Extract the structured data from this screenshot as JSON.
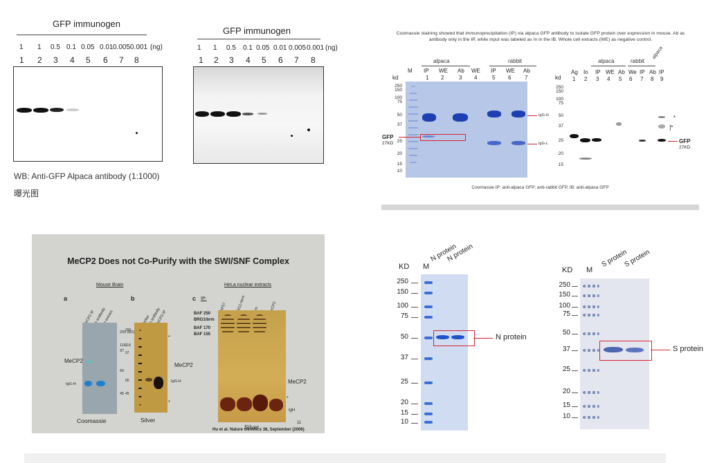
{
  "panel1": {
    "left": {
      "title": "GFP  immunogen",
      "amounts": [
        "1",
        "1",
        "0.5",
        "0.1",
        "0.05",
        "0.01",
        "0.005",
        "0.001",
        "(ng)"
      ],
      "lanes": [
        "1",
        "2",
        "3",
        "4",
        "5",
        "6",
        "7",
        "8"
      ]
    },
    "right": {
      "title": "GFP  immunogen",
      "amounts": [
        "1",
        "1",
        "0.5",
        "0.1",
        "0.05",
        "0.01",
        "0.005",
        "0.001",
        "(ng)"
      ],
      "lanes": [
        "1",
        "2",
        "3",
        "4",
        "5",
        "6",
        "7",
        "8"
      ]
    },
    "caption": "WB: Anti-GFP Alpaca antibody (1:1000)",
    "subcaption": "曝光图"
  },
  "panel2": {
    "description": "Coomassie staining showed that immunoprecipitation (IP) via alpaca GFP antibody to isolate GFP protein over expression in mouse. Ab as antibody only in the IP, while input was labeled as In in the IB. Whole cell extracts (WE)  as negative control.",
    "gel": {
      "kd": "kd",
      "markers": [
        "250",
        "150",
        "100",
        "75",
        "50",
        "37",
        "25",
        "20",
        "15",
        "10"
      ],
      "groups": [
        "alpaca",
        "rabbit"
      ],
      "lane_labels": [
        "M",
        "IP",
        "WE",
        "Ab",
        "WE",
        "IP",
        "WE",
        "Ab"
      ],
      "lane_numbers": [
        "1",
        "2",
        "3",
        "4",
        "5",
        "6",
        "7"
      ],
      "igg_h": "IgG-H",
      "igg_l": "IgG-L",
      "gfp": "GFP",
      "gfp_kd": "27KD"
    },
    "blot": {
      "kd": "kd",
      "markers": [
        "250",
        "150",
        "100",
        "75",
        "50",
        "37",
        "25",
        "20",
        "15"
      ],
      "groups": [
        "alpaca",
        "rabbit",
        "alpaca"
      ],
      "lane_labels": [
        "Ag",
        "In",
        "IP",
        "WE",
        "Ab",
        "We",
        "IP",
        "Ab",
        "IP"
      ],
      "lane_numbers": [
        "1",
        "2",
        "3",
        "4",
        "5",
        "6",
        "7",
        "8",
        "9"
      ],
      "gfp": "GFP",
      "gfp_kd": "27KD",
      "star": "*"
    },
    "footer": "Coomassie IP:  anti-alpaca GFP; anti-rabbit  GFP, IB: anti-alpaca  GFP"
  },
  "panel3": {
    "title": "MeCP2 Does not Co-Purify with the SWI/SNF Complex",
    "a": {
      "letter": "a",
      "group": "Mouse Brain",
      "lanes": [
        "MeCP2 IP",
        "No antibody",
        "No extract"
      ],
      "markers": [
        "200 (kD)",
        "116",
        "97",
        "66",
        "45"
      ],
      "mecp2": "MeCP2",
      "iggh": "IgG-H",
      "stain": "Coomassie"
    },
    "b": {
      "letter": "b",
      "lanes": [
        "Marker",
        "No antibody",
        "MeCP2-IP"
      ],
      "markers": [
        "200",
        "116",
        "97",
        "66",
        "45"
      ],
      "mecp2": "MeCP2",
      "iggh": "IgG-H",
      "star": "*",
      "stain": "Silver"
    },
    "c": {
      "letter": "c",
      "group": "HeLa nuclear extracts",
      "ip": "IP:",
      "lanes": [
        "BAF57",
        "BRG1+brm",
        "Brm",
        "MeCP2"
      ],
      "markers": [
        "BAF 250",
        "BRG1/brm",
        "BAF 170",
        "BAF 155"
      ],
      "mecp2": "MeCP2",
      "igh": "IgH",
      "star": "*",
      "stain": "Silver"
    },
    "page_num": "11",
    "citation": "Hu et al. Nature Genetics 38, September (2006)"
  },
  "panel4": {
    "n": {
      "kd": "KD",
      "m": "M",
      "lanes": [
        "N protein",
        "N protein"
      ],
      "markers": [
        "250",
        "150",
        "100",
        "75",
        "50",
        "37",
        "25",
        "20",
        "15",
        "10"
      ],
      "label": "N protein"
    },
    "s": {
      "kd": "KD",
      "m": "M",
      "lanes": [
        "S protein",
        "S protein"
      ],
      "markers": [
        "250",
        "150",
        "100",
        "75",
        "50",
        "37",
        "25",
        "20",
        "15",
        "10"
      ],
      "label": "S protein"
    }
  }
}
